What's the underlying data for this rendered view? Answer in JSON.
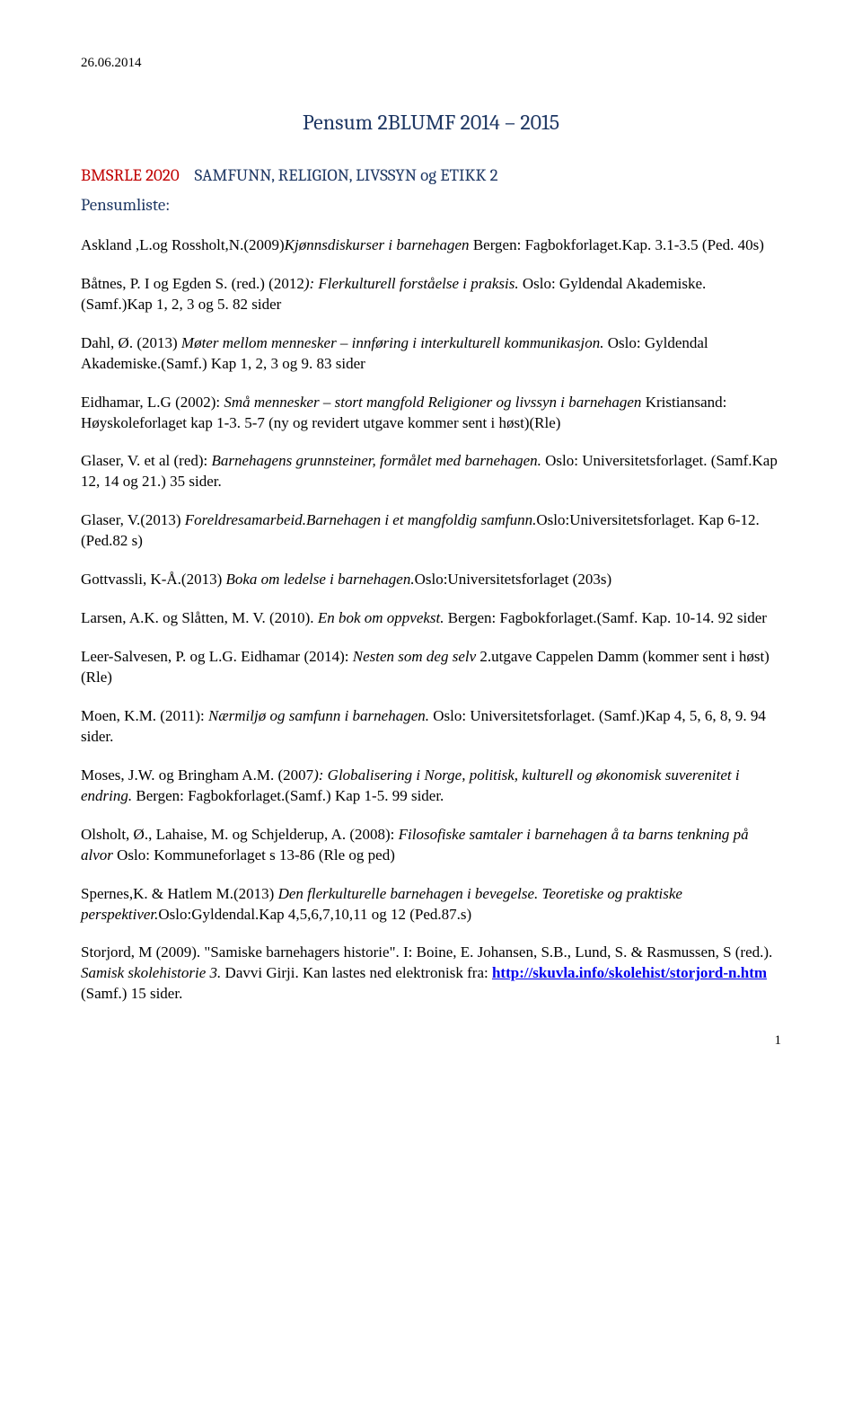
{
  "colors": {
    "title_color": "#1f3864",
    "course_code_color": "#c00000",
    "text_color": "#000000",
    "link_color": "#0000ee",
    "background": "#ffffff"
  },
  "typography": {
    "body_font": "Times New Roman",
    "heading_font": "Cambria",
    "body_size_pt": 12,
    "title_size_pt": 16,
    "course_size_pt": 13
  },
  "date": "26.06.2014",
  "title": "Pensum 2BLUMF 2014 – 2015",
  "course_code": "BMSRLE 2020",
  "course_name": "SAMFUNN, RELIGION, LIVSSYN og ETIKK 2",
  "subheading": "Pensumliste:",
  "entries": [
    {
      "pre": "Askland ,L.og Rossholt,N.(2009)",
      "ital": "Kjønnsdiskurser i barnehagen",
      "post": " Bergen: Fagbokforlaget.Kap. 3.1-3.5 (Ped. 40s)"
    },
    {
      "pre": "Båtnes, P. I og Egden S. (red.) (2012",
      "ital": "): Flerkulturell forståelse i praksis.",
      "post": " Oslo: Gyldendal Akademiske. (Samf.)Kap 1, 2, 3 og 5. 82 sider"
    },
    {
      "pre": "Dahl, Ø. (2013) ",
      "ital": "Møter mellom mennesker – innføring i interkulturell kommunikasjon.",
      "post": " Oslo: Gyldendal Akademiske.(Samf.) Kap 1, 2, 3 og 9. 83 sider"
    },
    {
      "pre": "Eidhamar, L.G (2002): ",
      "ital": "Små mennesker – stort mangfold  Religioner og livssyn i barnehagen",
      "post": " Kristiansand: Høyskoleforlaget kap 1-3. 5-7 (ny og revidert utgave kommer sent i høst)(Rle)"
    },
    {
      "pre": "Glaser, V. et al (red): ",
      "ital": "Barnehagens grunnsteiner, formålet med barnehagen.",
      "post": " Oslo: Universitetsforlaget. (Samf.Kap  12, 14 og 21.) 35 sider."
    },
    {
      "pre": "Glaser, V.(2013) ",
      "ital": "Foreldresamarbeid.Barnehagen i et mangfoldig samfunn.",
      "post": "Oslo:Universitetsforlaget. Kap 6-12. (Ped.82 s)"
    },
    {
      "pre": "Gottvassli, K-Å.(2013) ",
      "ital": "Boka om ledelse i barnehagen.",
      "post": "Oslo:Universitetsforlaget (203s)"
    },
    {
      "pre": "Larsen, A.K. og Slåtten, M. V. (2010). ",
      "ital": "En bok om oppvekst.",
      "post": " Bergen: Fagbokforlaget.(Samf. Kap. 10-14. 92 sider"
    },
    {
      "pre": "Leer-Salvesen, P. og L.G. Eidhamar (2014): ",
      "ital": "Nesten som deg selv",
      "post": "  2.utgave Cappelen Damm (kommer sent i høst)(Rle)"
    },
    {
      "pre": "Moen, K.M. (2011): ",
      "ital": "Nærmiljø og samfunn i barnehagen.",
      "post": " Oslo: Universitetsforlaget. (Samf.)Kap 4, 5, 6, 8, 9. 94 sider."
    },
    {
      "pre": "Moses, J.W. og Bringham A.M. (2007",
      "ital": "): Globalisering i Norge, politisk, kulturell og økonomisk suverenitet i endring.",
      "post": " Bergen: Fagbokforlaget.(Samf.) Kap 1-5. 99 sider."
    },
    {
      "pre": "Olsholt, Ø., Lahaise, M. og Schjelderup, A. (2008): ",
      "ital": "Filosofiske samtaler i barnehagen  å ta barns tenkning på alvor",
      "post": "  Oslo: Kommuneforlaget  s 13-86 (Rle og ped)"
    },
    {
      "pre": "Spernes,K. & Hatlem M.(2013) ",
      "ital": "Den flerkulturelle barnehagen i bevegelse. Teoretiske og praktiske perspektiver.",
      "post": "Oslo:Gyldendal.Kap 4,5,6,7,10,11 og 12 (Ped.87.s)"
    }
  ],
  "final_entry": {
    "pre": "Storjord, M (2009). \"Samiske barnehagers historie\". I: Boine, E. Johansen, S.B., Lund, S. & Rasmussen, S (red.). ",
    "ital": "Samisk skolehistorie 3.",
    "mid": " Davvi Girji. Kan lastes ned elektronisk fra: ",
    "link_text": "http://skuvla.info/skolehist/storjord-n.htm ",
    "post": "(Samf.) 15 sider."
  },
  "page_number": "1"
}
